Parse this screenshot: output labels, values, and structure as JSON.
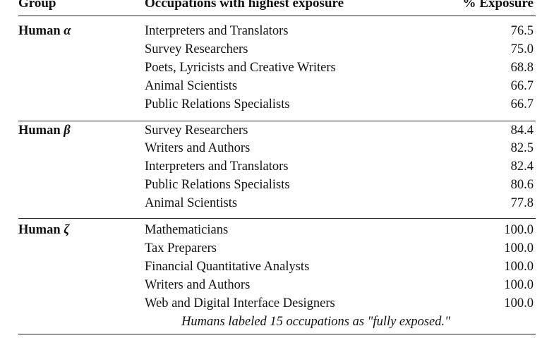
{
  "table": {
    "headers": {
      "group": "Group",
      "occupations": "Occupations with highest exposure",
      "exposure": "% Exposure"
    },
    "groups": [
      {
        "label_prefix": "Human",
        "greek": "α",
        "rows": [
          {
            "occupation": "Interpreters and Translators",
            "exposure": "76.5"
          },
          {
            "occupation": "Survey Researchers",
            "exposure": "75.0"
          },
          {
            "occupation": "Poets, Lyricists and Creative Writers",
            "exposure": "68.8"
          },
          {
            "occupation": "Animal Scientists",
            "exposure": "66.7"
          },
          {
            "occupation": "Public Relations Specialists",
            "exposure": "66.7"
          }
        ]
      },
      {
        "label_prefix": "Human",
        "greek": "β",
        "rows": [
          {
            "occupation": "Survey Researchers",
            "exposure": "84.4"
          },
          {
            "occupation": "Writers and Authors",
            "exposure": "82.5"
          },
          {
            "occupation": "Interpreters and Translators",
            "exposure": "82.4"
          },
          {
            "occupation": "Public Relations Specialists",
            "exposure": "80.6"
          },
          {
            "occupation": "Animal Scientists",
            "exposure": "77.8"
          }
        ]
      },
      {
        "label_prefix": "Human",
        "greek": "ζ",
        "rows": [
          {
            "occupation": "Mathematicians",
            "exposure": "100.0"
          },
          {
            "occupation": "Tax Preparers",
            "exposure": "100.0"
          },
          {
            "occupation": "Financial Quantitative Analysts",
            "exposure": "100.0"
          },
          {
            "occupation": "Writers and Authors",
            "exposure": "100.0"
          },
          {
            "occupation": "Web and Digital Interface Designers",
            "exposure": "100.0"
          }
        ]
      }
    ],
    "note": "Humans labeled 15 occupations as \"fully exposed.\""
  }
}
